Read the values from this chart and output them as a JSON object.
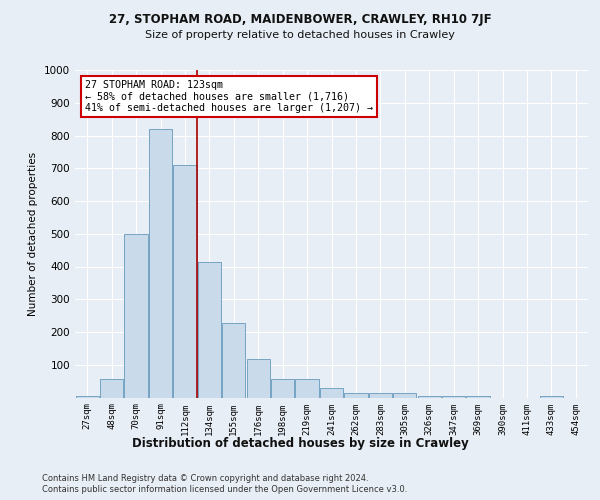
{
  "title1": "27, STOPHAM ROAD, MAIDENBOWER, CRAWLEY, RH10 7JF",
  "title2": "Size of property relative to detached houses in Crawley",
  "xlabel": "Distribution of detached houses by size in Crawley",
  "ylabel": "Number of detached properties",
  "categories": [
    "27sqm",
    "48sqm",
    "70sqm",
    "91sqm",
    "112sqm",
    "134sqm",
    "155sqm",
    "176sqm",
    "198sqm",
    "219sqm",
    "241sqm",
    "262sqm",
    "283sqm",
    "305sqm",
    "326sqm",
    "347sqm",
    "369sqm",
    "390sqm",
    "411sqm",
    "433sqm",
    "454sqm"
  ],
  "values": [
    5,
    58,
    500,
    820,
    710,
    415,
    228,
    118,
    55,
    55,
    30,
    13,
    13,
    13,
    5,
    5,
    5,
    0,
    0,
    5,
    0
  ],
  "bar_color": "#c9daea",
  "bar_edge_color": "#6699bb",
  "vline_color": "#aa0000",
  "annotation_text": "27 STOPHAM ROAD: 123sqm\n← 58% of detached houses are smaller (1,716)\n41% of semi-detached houses are larger (1,207) →",
  "annotation_box_color": "#ffffff",
  "annotation_box_edge": "#cc0000",
  "footer1": "Contains HM Land Registry data © Crown copyright and database right 2024.",
  "footer2": "Contains public sector information licensed under the Open Government Licence v3.0.",
  "bg_color": "#e8eef5",
  "plot_bg_color": "#e8eef5",
  "ylim": [
    0,
    1000
  ],
  "yticks": [
    0,
    100,
    200,
    300,
    400,
    500,
    600,
    700,
    800,
    900,
    1000
  ],
  "vline_pos": 4.5,
  "title1_fontsize": 8.5,
  "title2_fontsize": 8.0,
  "ylabel_fontsize": 7.5,
  "xlabel_fontsize": 8.5,
  "tick_fontsize": 6.5,
  "ytick_fontsize": 7.5,
  "footer_fontsize": 6.0,
  "ann_fontsize": 7.2
}
